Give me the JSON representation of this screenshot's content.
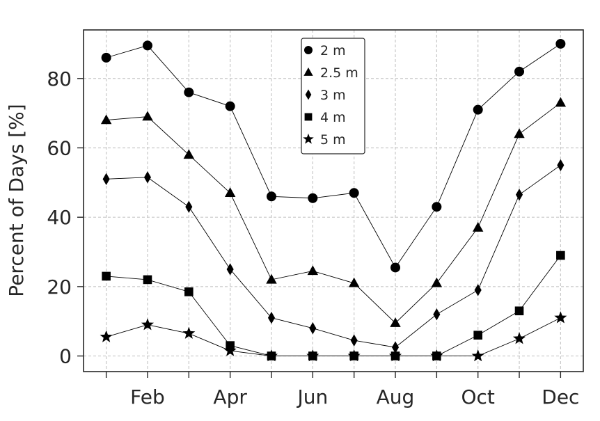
{
  "chart_data": {
    "type": "line",
    "ylabel": "Percent of Days [%]",
    "xlabel": "",
    "x": [
      1,
      2,
      3,
      4,
      5,
      6,
      7,
      8,
      9,
      10,
      11,
      12
    ],
    "xticks": [
      1,
      2,
      3,
      4,
      5,
      6,
      7,
      8,
      9,
      10,
      11,
      12
    ],
    "xticklabels": [
      "",
      "Feb",
      "",
      "Apr",
      "",
      "Jun",
      "",
      "Aug",
      "",
      "Oct",
      "",
      "Dec"
    ],
    "xlim": [
      0.45,
      12.55
    ],
    "ylim": [
      -4.5,
      94
    ],
    "yticks": [
      0,
      20,
      40,
      60,
      80
    ],
    "grid": true,
    "legend_position": "top-center",
    "series": [
      {
        "name": "2 m",
        "marker": "circle",
        "values": [
          86,
          89.5,
          76,
          72,
          46,
          45.5,
          47,
          25.5,
          43,
          71,
          82,
          90
        ]
      },
      {
        "name": "2.5 m",
        "marker": "triangle",
        "values": [
          68,
          69,
          58,
          47,
          22,
          24.5,
          21,
          9.5,
          21,
          37,
          64,
          73
        ]
      },
      {
        "name": "3 m",
        "marker": "diamond",
        "values": [
          51,
          51.5,
          43,
          25,
          11,
          8,
          4.5,
          2.5,
          12,
          19,
          46.5,
          55
        ]
      },
      {
        "name": "4 m",
        "marker": "square",
        "values": [
          23,
          22,
          18.5,
          3,
          0,
          0,
          0,
          0,
          0,
          6,
          13,
          29
        ]
      },
      {
        "name": "5 m",
        "marker": "star",
        "values": [
          5.5,
          9,
          6.5,
          1.5,
          0,
          0,
          0,
          0,
          0,
          0,
          5,
          11
        ]
      }
    ]
  }
}
